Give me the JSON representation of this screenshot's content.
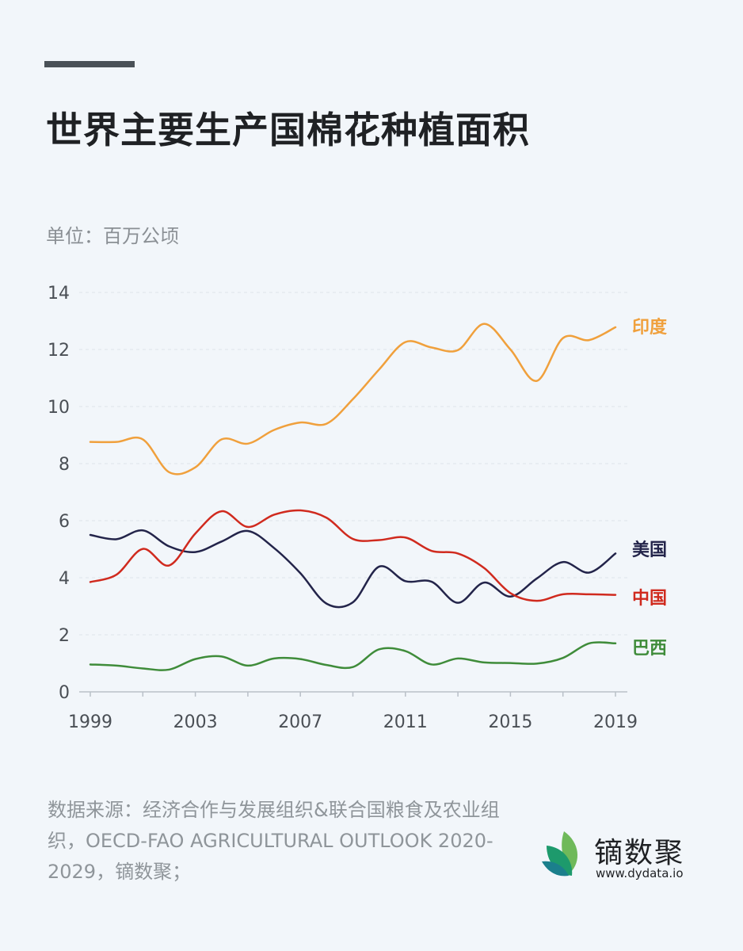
{
  "header": {
    "title": "世界主要生产国棉花种植面积",
    "unit": "单位：百万公顷"
  },
  "chart_data": {
    "type": "line",
    "title": "世界主要生产国棉花种植面积",
    "ylabel": "单位：百万公顷",
    "xlabel": "",
    "ylim": [
      0,
      14
    ],
    "yticks": [
      "0",
      "2",
      "4",
      "6",
      "8",
      "10",
      "12",
      "14"
    ],
    "xticks": [
      "1999",
      "2003",
      "2007",
      "2011",
      "2015",
      "2019"
    ],
    "grid": true,
    "x": [
      1999,
      2000,
      2001,
      2002,
      2003,
      2004,
      2005,
      2006,
      2007,
      2008,
      2009,
      2010,
      2011,
      2012,
      2013,
      2014,
      2015,
      2016,
      2017,
      2018,
      2019
    ],
    "series": [
      {
        "name": "印度",
        "color": "#f0a03c",
        "values": [
          8.76,
          8.76,
          8.85,
          7.7,
          7.87,
          8.85,
          8.7,
          9.18,
          9.44,
          9.4,
          10.26,
          11.3,
          12.26,
          12.07,
          11.98,
          12.9,
          12.0,
          10.9,
          12.4,
          12.33,
          12.78
        ]
      },
      {
        "name": "美国",
        "color": "#23244a",
        "values": [
          5.5,
          5.35,
          5.66,
          5.1,
          4.9,
          5.27,
          5.64,
          5.04,
          4.16,
          3.09,
          3.14,
          4.39,
          3.88,
          3.86,
          3.12,
          3.83,
          3.34,
          3.97,
          4.55,
          4.18,
          4.85
        ]
      },
      {
        "name": "中国",
        "color": "#d02a1e",
        "values": [
          3.85,
          4.11,
          5.01,
          4.43,
          5.55,
          6.33,
          5.78,
          6.21,
          6.36,
          6.1,
          5.36,
          5.32,
          5.41,
          4.94,
          4.85,
          4.34,
          3.46,
          3.19,
          3.42,
          3.42,
          3.4
        ]
      },
      {
        "name": "巴西",
        "color": "#3f8c3a",
        "values": [
          0.96,
          0.92,
          0.82,
          0.78,
          1.15,
          1.24,
          0.92,
          1.17,
          1.15,
          0.94,
          0.87,
          1.49,
          1.43,
          0.96,
          1.17,
          1.03,
          1.01,
          0.99,
          1.19,
          1.7,
          1.7
        ]
      }
    ]
  },
  "footer": {
    "source": "数据来源：经济合作与发展组织&联合国粮食及农业组织，OECD-FAO AGRICULTURAL OUTLOOK 2020-2029，镝数聚；",
    "logo_text": "镝数聚",
    "logo_url": "www.dydata.io"
  }
}
